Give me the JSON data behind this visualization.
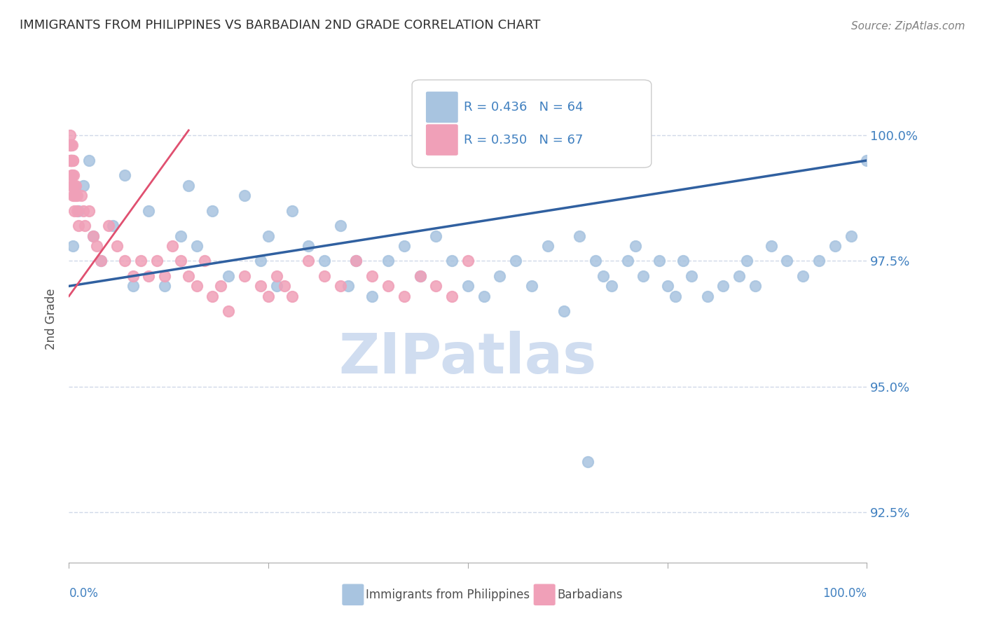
{
  "title": "IMMIGRANTS FROM PHILIPPINES VS BARBADIAN 2ND GRADE CORRELATION CHART",
  "source": "Source: ZipAtlas.com",
  "ylabel": "2nd Grade",
  "ytick_labels": [
    "92.5%",
    "95.0%",
    "97.5%",
    "100.0%"
  ],
  "ytick_values": [
    92.5,
    95.0,
    97.5,
    100.0
  ],
  "legend_blue_label": "Immigrants from Philippines",
  "legend_pink_label": "Barbadians",
  "legend_blue_r": "R = 0.436",
  "legend_blue_n": "N = 64",
  "legend_pink_r": "R = 0.350",
  "legend_pink_n": "N = 67",
  "blue_color": "#a8c4e0",
  "pink_color": "#f0a0b8",
  "blue_line_color": "#3060a0",
  "pink_line_color": "#e05070",
  "title_color": "#303030",
  "axis_label_color": "#4080c0",
  "grid_color": "#d0d8e8",
  "watermark_color": "#d0ddf0",
  "background_color": "#ffffff",
  "xlim": [
    0.0,
    100.0
  ],
  "ylim": [
    91.5,
    101.2
  ],
  "blue_scatter_x": [
    0.5,
    1.2,
    1.8,
    2.5,
    3.0,
    4.0,
    5.5,
    7.0,
    8.0,
    10.0,
    12.0,
    14.0,
    15.0,
    16.0,
    18.0,
    20.0,
    22.0,
    24.0,
    25.0,
    26.0,
    28.0,
    30.0,
    32.0,
    34.0,
    35.0,
    36.0,
    38.0,
    40.0,
    42.0,
    44.0,
    46.0,
    48.0,
    50.0,
    52.0,
    54.0,
    56.0,
    58.0,
    60.0,
    62.0,
    64.0,
    65.0,
    66.0,
    67.0,
    68.0,
    70.0,
    71.0,
    72.0,
    74.0,
    75.0,
    76.0,
    77.0,
    78.0,
    80.0,
    82.0,
    84.0,
    85.0,
    86.0,
    88.0,
    90.0,
    92.0,
    94.0,
    96.0,
    98.0,
    100.0
  ],
  "blue_scatter_y": [
    97.8,
    98.5,
    99.0,
    99.5,
    98.0,
    97.5,
    98.2,
    99.2,
    97.0,
    98.5,
    97.0,
    98.0,
    99.0,
    97.8,
    98.5,
    97.2,
    98.8,
    97.5,
    98.0,
    97.0,
    98.5,
    97.8,
    97.5,
    98.2,
    97.0,
    97.5,
    96.8,
    97.5,
    97.8,
    97.2,
    98.0,
    97.5,
    97.0,
    96.8,
    97.2,
    97.5,
    97.0,
    97.8,
    96.5,
    98.0,
    93.5,
    97.5,
    97.2,
    97.0,
    97.5,
    97.8,
    97.2,
    97.5,
    97.0,
    96.8,
    97.5,
    97.2,
    96.8,
    97.0,
    97.2,
    97.5,
    97.0,
    97.8,
    97.5,
    97.2,
    97.5,
    97.8,
    98.0,
    99.5
  ],
  "pink_scatter_x": [
    0.05,
    0.1,
    0.15,
    0.15,
    0.2,
    0.2,
    0.25,
    0.25,
    0.3,
    0.3,
    0.35,
    0.35,
    0.4,
    0.4,
    0.45,
    0.45,
    0.5,
    0.5,
    0.6,
    0.6,
    0.7,
    0.7,
    0.8,
    0.8,
    1.0,
    1.0,
    1.2,
    1.5,
    1.8,
    2.0,
    2.5,
    3.0,
    3.5,
    4.0,
    5.0,
    6.0,
    7.0,
    8.0,
    9.0,
    10.0,
    11.0,
    12.0,
    13.0,
    14.0,
    15.0,
    16.0,
    17.0,
    18.0,
    19.0,
    20.0,
    22.0,
    24.0,
    25.0,
    26.0,
    27.0,
    28.0,
    30.0,
    32.0,
    34.0,
    36.0,
    38.0,
    40.0,
    42.0,
    44.0,
    46.0,
    48.0,
    50.0
  ],
  "pink_scatter_y": [
    99.8,
    99.5,
    99.8,
    100.0,
    99.5,
    99.8,
    99.8,
    99.5,
    99.2,
    99.5,
    99.0,
    99.5,
    99.2,
    99.8,
    99.5,
    99.0,
    98.8,
    99.5,
    99.2,
    99.0,
    98.8,
    98.5,
    99.0,
    98.8,
    98.5,
    98.8,
    98.2,
    98.8,
    98.5,
    98.2,
    98.5,
    98.0,
    97.8,
    97.5,
    98.2,
    97.8,
    97.5,
    97.2,
    97.5,
    97.2,
    97.5,
    97.2,
    97.8,
    97.5,
    97.2,
    97.0,
    97.5,
    96.8,
    97.0,
    96.5,
    97.2,
    97.0,
    96.8,
    97.2,
    97.0,
    96.8,
    97.5,
    97.2,
    97.0,
    97.5,
    97.2,
    97.0,
    96.8,
    97.2,
    97.0,
    96.8,
    97.5
  ],
  "blue_trendline_x": [
    0.0,
    100.0
  ],
  "blue_trendline_y": [
    97.0,
    99.5
  ],
  "pink_trendline_x": [
    0.0,
    15.0
  ],
  "pink_trendline_y": [
    96.8,
    100.1
  ]
}
